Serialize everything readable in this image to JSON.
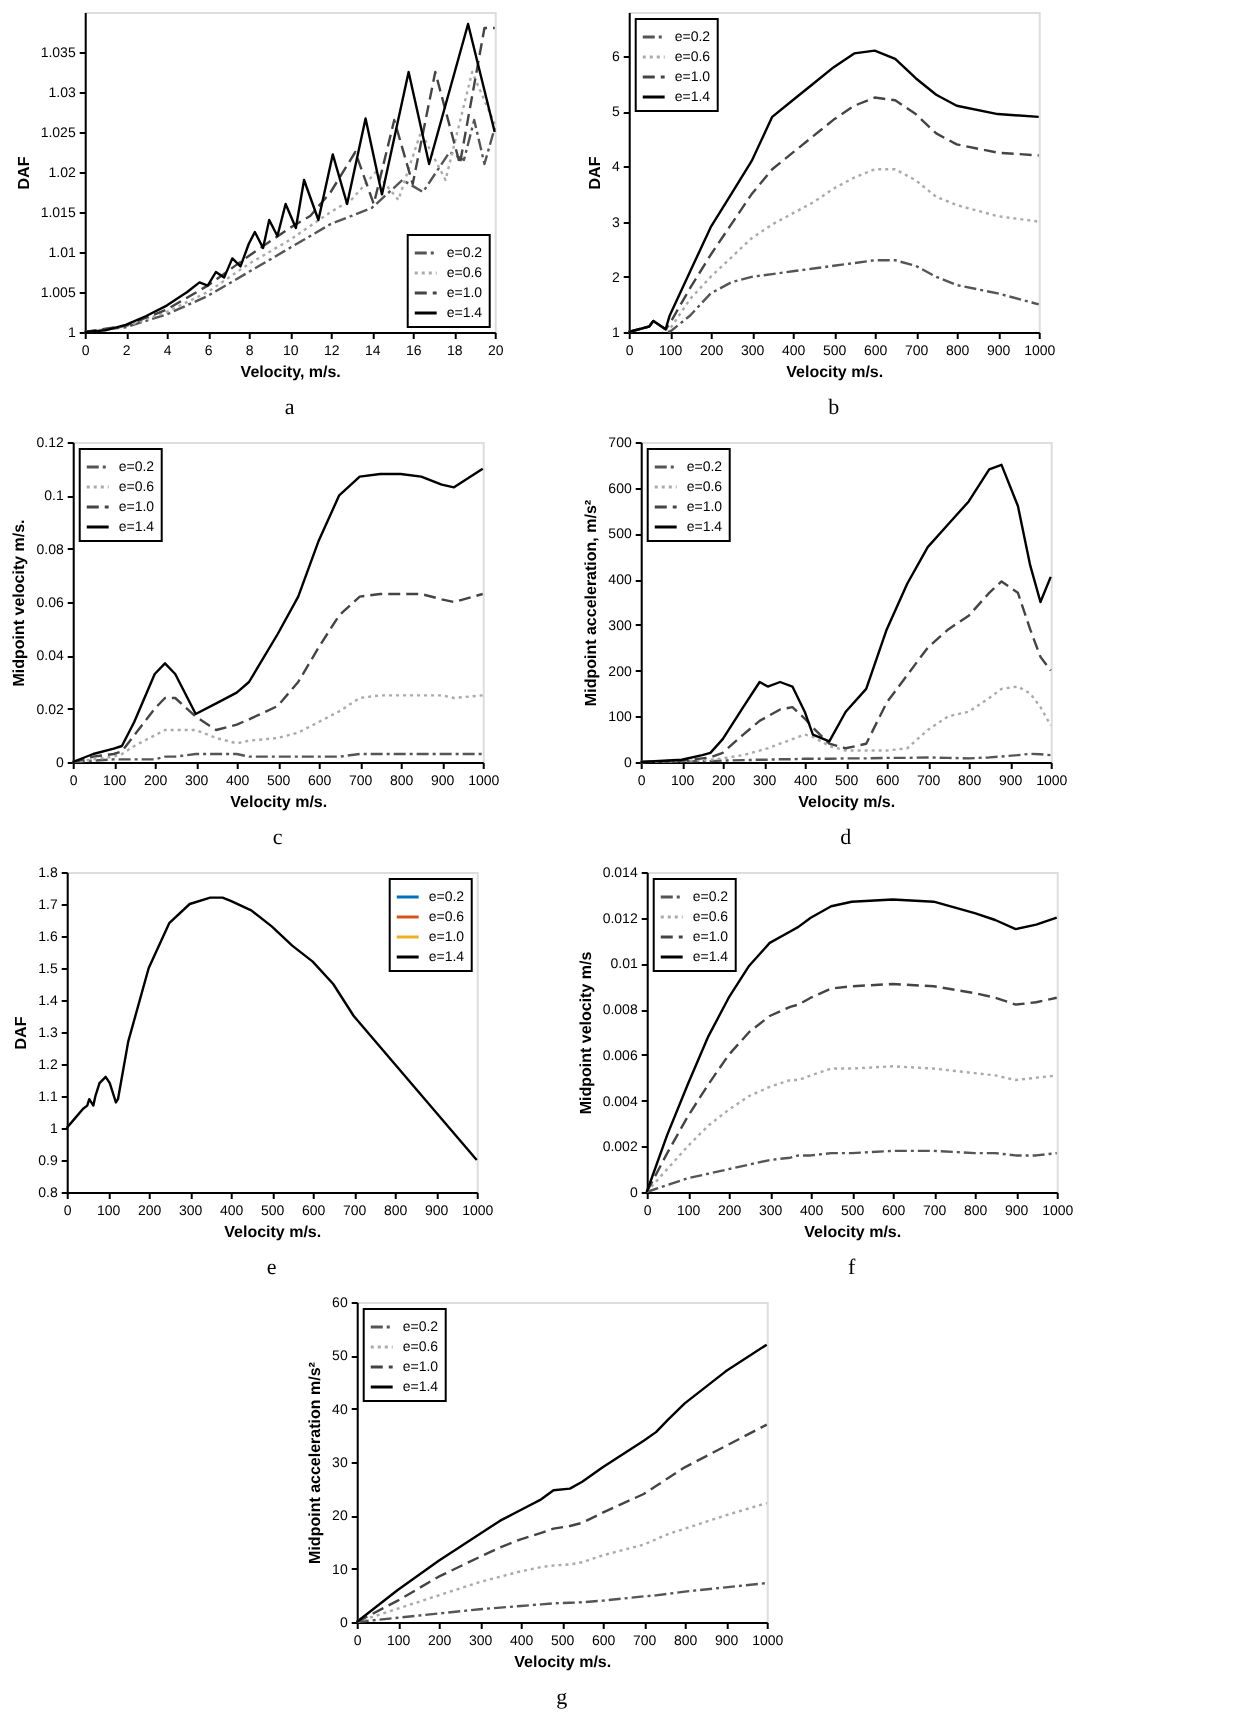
{
  "chart_data": [
    {
      "type": "line",
      "title": "a",
      "xlabel": "Velocity, m/s.",
      "ylabel": "DAF",
      "xlim": [
        0,
        20
      ],
      "xticks": [
        0,
        2,
        4,
        6,
        8,
        10,
        12,
        14,
        16,
        18,
        20
      ],
      "ylim": [
        1,
        1.04
      ],
      "yticks": [
        1,
        1.005,
        1.01,
        1.015,
        1.02,
        1.025,
        1.03,
        1.035
      ],
      "grid": false,
      "legend": "bottom right",
      "marker": "none",
      "series": [
        {
          "name": "e=0.2",
          "color": "#555555",
          "line_style": "dashdot",
          "x": [
            0,
            2,
            4,
            6,
            8,
            10,
            12,
            13,
            14,
            15.5,
            16.5,
            17.8,
            18.5,
            19,
            19.5,
            20
          ],
          "values": [
            1,
            1.0006,
            1.0022,
            1.0045,
            1.0075,
            1.0105,
            1.0135,
            1.0145,
            1.0155,
            1.019,
            1.0175,
            1.0225,
            1.0215,
            1.0265,
            1.021,
            1.0255
          ]
        },
        {
          "name": "e=0.6",
          "color": "#aaaaaa",
          "line_style": "dotted",
          "x": [
            0,
            2,
            4,
            6,
            8,
            10,
            12,
            13,
            14.2,
            15.3,
            16.4,
            17.6,
            18.9,
            20
          ],
          "values": [
            1,
            1.0007,
            1.0025,
            1.005,
            1.0085,
            1.0115,
            1.015,
            1.0165,
            1.02,
            1.0165,
            1.025,
            1.019,
            1.0325,
            1.026
          ]
        },
        {
          "name": "e=1.0",
          "color": "#444444",
          "line_style": "dashed",
          "x": [
            0,
            2,
            4,
            6,
            8,
            10,
            11,
            12,
            13.2,
            14.1,
            15.1,
            16,
            17.1,
            18.3,
            19.5,
            20
          ],
          "values": [
            1,
            1.0008,
            1.0028,
            1.0058,
            1.0095,
            1.013,
            1.0145,
            1.0175,
            1.0225,
            1.016,
            1.0265,
            1.0185,
            1.0325,
            1.021,
            1.038,
            1.038
          ]
        },
        {
          "name": "e=1.4",
          "color": "#000000",
          "line_style": "solid",
          "x": [
            0,
            1,
            2,
            3,
            4,
            5,
            5.6,
            6,
            6.4,
            6.8,
            7.2,
            7.6,
            8,
            8.3,
            8.7,
            9,
            9.4,
            9.8,
            10.3,
            10.7,
            11.4,
            12.1,
            12.8,
            13.7,
            14.5,
            15.8,
            16.8,
            18.7,
            20
          ],
          "values": [
            1,
            1.0002,
            1.0009,
            1.002,
            1.0033,
            1.005,
            1.0062,
            1.0058,
            1.0075,
            1.0068,
            1.0092,
            1.0082,
            1.011,
            1.0125,
            1.0105,
            1.014,
            1.012,
            1.016,
            1.013,
            1.019,
            1.014,
            1.0222,
            1.016,
            1.0267,
            1.0172,
            1.0325,
            1.021,
            1.0385,
            1.025
          ]
        }
      ]
    },
    {
      "type": "line",
      "title": "b",
      "xlabel": "Velocity m/s.",
      "ylabel": "DAF",
      "xlim": [
        0,
        1000
      ],
      "xticks": [
        0,
        100,
        200,
        300,
        400,
        500,
        600,
        700,
        800,
        900,
        1000
      ],
      "ylim": [
        1,
        6.8
      ],
      "yticks": [
        1,
        2,
        3,
        4,
        5,
        6
      ],
      "grid": false,
      "legend": "top left",
      "marker": "none",
      "x": [
        0,
        50,
        60,
        80,
        90,
        100,
        150,
        200,
        250,
        300,
        350,
        400,
        450,
        500,
        550,
        600,
        650,
        700,
        750,
        800,
        900,
        1000
      ],
      "series": [
        {
          "name": "e=0.2",
          "color": "#555555",
          "line_style": "dashdot",
          "values": [
            1,
            1.1,
            1.2,
            1.1,
            1.05,
            1.0,
            1.3,
            1.7,
            1.9,
            2.0,
            2.05,
            2.1,
            2.15,
            2.2,
            2.25,
            2.3,
            2.3,
            2.2,
            2.0,
            1.85,
            1.7,
            1.5
          ]
        },
        {
          "name": "e=0.6",
          "color": "#aaaaaa",
          "line_style": "dotted",
          "values": [
            1,
            1.1,
            1.2,
            1.1,
            1.05,
            1.05,
            1.6,
            2.0,
            2.35,
            2.7,
            2.95,
            3.15,
            3.35,
            3.6,
            3.8,
            3.95,
            3.95,
            3.75,
            3.45,
            3.3,
            3.1,
            3.0
          ]
        },
        {
          "name": "e=1.0",
          "color": "#444444",
          "line_style": "dashed",
          "values": [
            1,
            1.1,
            1.2,
            1.1,
            1.05,
            1.15,
            1.8,
            2.4,
            2.95,
            3.5,
            3.95,
            4.25,
            4.55,
            4.85,
            5.1,
            5.25,
            5.2,
            4.95,
            4.6,
            4.4,
            4.25,
            4.2
          ]
        },
        {
          "name": "e=1.4",
          "color": "#000000",
          "line_style": "solid",
          "values": [
            1,
            1.1,
            1.2,
            1.1,
            1.05,
            1.3,
            2.1,
            2.9,
            3.5,
            4.1,
            4.9,
            5.2,
            5.5,
            5.8,
            6.05,
            6.1,
            5.95,
            5.6,
            5.3,
            5.1,
            4.95,
            4.9
          ]
        }
      ]
    },
    {
      "type": "line",
      "title": "c",
      "xlabel": "Velocity m/s.",
      "ylabel": "Midpoint velocity m/s.",
      "xlim": [
        0,
        1000
      ],
      "xticks": [
        0,
        100,
        200,
        300,
        400,
        500,
        600,
        700,
        800,
        900,
        1000
      ],
      "ylim": [
        0,
        0.12
      ],
      "yticks": [
        0,
        0.02,
        0.04,
        0.06,
        0.08,
        0.1,
        0.12
      ],
      "grid": false,
      "legend": "top left",
      "marker": "none",
      "x": [
        0,
        50,
        100,
        120,
        150,
        200,
        225,
        250,
        300,
        350,
        400,
        430,
        500,
        550,
        600,
        650,
        700,
        750,
        800,
        850,
        900,
        930,
        1000
      ],
      "series": [
        {
          "name": "e=0.2",
          "color": "#555555",
          "line_style": "dashdot",
          "values": [
            0,
            0.0005,
            0.001,
            0.001,
            0.001,
            0.001,
            0.002,
            0.002,
            0.003,
            0.003,
            0.003,
            0.002,
            0.002,
            0.002,
            0.002,
            0.002,
            0.003,
            0.003,
            0.003,
            0.003,
            0.003,
            0.003,
            0.003
          ]
        },
        {
          "name": "e=0.6",
          "color": "#aaaaaa",
          "line_style": "dotted",
          "values": [
            0,
            0.001,
            0.002,
            0.003,
            0.006,
            0.01,
            0.012,
            0.012,
            0.012,
            0.009,
            0.007,
            0.008,
            0.009,
            0.011,
            0.015,
            0.019,
            0.024,
            0.025,
            0.025,
            0.025,
            0.025,
            0.024,
            0.025
          ]
        },
        {
          "name": "e=1.0",
          "color": "#444444",
          "line_style": "dashed",
          "values": [
            0,
            0.002,
            0.003,
            0.004,
            0.01,
            0.02,
            0.024,
            0.024,
            0.017,
            0.012,
            0.014,
            0.016,
            0.021,
            0.03,
            0.043,
            0.055,
            0.062,
            0.063,
            0.063,
            0.063,
            0.061,
            0.06,
            0.063
          ]
        },
        {
          "name": "e=1.4",
          "color": "#000000",
          "line_style": "solid",
          "values": [
            0,
            0.003,
            0.005,
            0.006,
            0.015,
            0.033,
            0.037,
            0.033,
            0.018,
            0.022,
            0.026,
            0.03,
            0.048,
            0.062,
            0.083,
            0.1,
            0.107,
            0.108,
            0.108,
            0.107,
            0.104,
            0.103,
            0.11
          ]
        }
      ]
    },
    {
      "type": "line",
      "title": "d",
      "xlabel": "Velocity m/s.",
      "ylabel": "Midpoint acceleration, m/s²",
      "xlim": [
        0,
        1000
      ],
      "xticks": [
        0,
        100,
        200,
        300,
        400,
        500,
        600,
        700,
        800,
        900,
        1000
      ],
      "ylim": [
        0,
        700
      ],
      "yticks": [
        0,
        100,
        200,
        300,
        400,
        500,
        600,
        700
      ],
      "grid": false,
      "legend": "top left",
      "marker": "none",
      "x": [
        0,
        100,
        150,
        170,
        200,
        250,
        290,
        310,
        340,
        370,
        400,
        420,
        460,
        500,
        550,
        600,
        650,
        700,
        750,
        800,
        850,
        880,
        920,
        950,
        975,
        1000
      ],
      "series": [
        {
          "name": "e=0.2",
          "color": "#555555",
          "line_style": "dashdot",
          "values": [
            0,
            1,
            2,
            2,
            3,
            4,
            5,
            5,
            6,
            6,
            7,
            7,
            7,
            8,
            8,
            9,
            9,
            10,
            9,
            8,
            10,
            12,
            15,
            18,
            17,
            15
          ]
        },
        {
          "name": "e=0.6",
          "color": "#aaaaaa",
          "line_style": "dotted",
          "values": [
            0,
            2,
            4,
            5,
            8,
            15,
            25,
            30,
            40,
            50,
            60,
            55,
            35,
            25,
            25,
            25,
            30,
            70,
            100,
            110,
            140,
            160,
            165,
            150,
            120,
            80
          ]
        },
        {
          "name": "e=1.0",
          "color": "#444444",
          "line_style": "dashed",
          "values": [
            0,
            3,
            8,
            10,
            20,
            60,
            90,
            100,
            115,
            120,
            95,
            75,
            40,
            30,
            40,
            130,
            190,
            250,
            290,
            320,
            370,
            395,
            370,
            290,
            230,
            200
          ]
        },
        {
          "name": "e=1.4",
          "color": "#000000",
          "line_style": "solid",
          "values": [
            0,
            5,
            15,
            20,
            50,
            120,
            175,
            165,
            175,
            165,
            110,
            60,
            45,
            110,
            160,
            290,
            390,
            470,
            520,
            570,
            640,
            650,
            560,
            430,
            350,
            405
          ]
        }
      ]
    },
    {
      "type": "line",
      "title": "e",
      "xlabel": "Velocity m/s.",
      "ylabel": "DAF",
      "xlim": [
        0,
        1000
      ],
      "xticks": [
        0,
        100,
        200,
        300,
        400,
        500,
        600,
        700,
        800,
        900,
        1000
      ],
      "ylim": [
        0.8,
        1.8
      ],
      "yticks": [
        0.8,
        0.9,
        1,
        1.1,
        1.2,
        1.3,
        1.4,
        1.5,
        1.6,
        1.7,
        1.8
      ],
      "grid": false,
      "legend": "top right",
      "marker": "none",
      "x": [
        0,
        20,
        40,
        50,
        55,
        60,
        65,
        70,
        80,
        95,
        105,
        115,
        120,
        125,
        150,
        200,
        250,
        300,
        350,
        380,
        400,
        450,
        500,
        550,
        600,
        650,
        700,
        800,
        900,
        1000
      ],
      "series": [
        {
          "name": "e=0.2",
          "color": "#0072bd",
          "line_style": "solid",
          "values": [
            null,
            null,
            null,
            null,
            null,
            null,
            null,
            null,
            null,
            null,
            null,
            null,
            null,
            null,
            null,
            null,
            null,
            null,
            null,
            null,
            null,
            null,
            null,
            null,
            null,
            null,
            null,
            null,
            null,
            null
          ]
        },
        {
          "name": "e=0.6",
          "color": "#d95319",
          "line_style": "solid",
          "values": [
            null,
            null,
            null,
            null,
            null,
            null,
            null,
            null,
            null,
            null,
            null,
            null,
            null,
            null,
            null,
            null,
            null,
            null,
            null,
            null,
            null,
            null,
            null,
            null,
            null,
            null,
            null,
            null,
            null,
            null
          ]
        },
        {
          "name": "e=1.0",
          "color": "#edb120",
          "line_style": "solid",
          "values": [
            null,
            null,
            null,
            null,
            null,
            null,
            null,
            null,
            null,
            null,
            null,
            null,
            null,
            null,
            null,
            null,
            null,
            null,
            null,
            null,
            null,
            null,
            null,
            null,
            null,
            null,
            null,
            null,
            null,
            null
          ]
        },
        {
          "name": "e=1.4",
          "color": "#000000",
          "line_style": "solid",
          "values": [
            1,
            1.03,
            1.06,
            1.07,
            1.09,
            1.08,
            1.07,
            1.1,
            1.14,
            1.16,
            1.14,
            1.1,
            1.08,
            1.09,
            1.27,
            1.5,
            1.64,
            1.7,
            1.72,
            1.72,
            1.71,
            1.68,
            1.63,
            1.57,
            1.52,
            1.45,
            1.35,
            1.2,
            1.05,
            0.9
          ]
        }
      ]
    },
    {
      "type": "line",
      "title": "f",
      "xlabel": "Velocity m/s.",
      "ylabel": "Midpoint velocity m/s",
      "xlim": [
        0,
        1000
      ],
      "xticks": [
        0,
        100,
        200,
        300,
        400,
        500,
        600,
        700,
        800,
        900,
        1000
      ],
      "ylim": [
        0,
        0.014
      ],
      "yticks": [
        0,
        0.002,
        0.004,
        0.006,
        0.008,
        0.01,
        0.012,
        0.014
      ],
      "grid": false,
      "legend": "top left",
      "marker": "none",
      "x": [
        0,
        50,
        100,
        150,
        200,
        250,
        300,
        350,
        370,
        400,
        450,
        500,
        600,
        700,
        800,
        850,
        900,
        950,
        1000
      ],
      "series": [
        {
          "name": "e=0.2",
          "color": "#555555",
          "line_style": "dashdot",
          "values": [
            0,
            0.0003,
            0.0006,
            0.0008,
            0.001,
            0.0012,
            0.0014,
            0.0015,
            0.0016,
            0.0016,
            0.0017,
            0.0017,
            0.0018,
            0.0018,
            0.0017,
            0.0017,
            0.0016,
            0.0016,
            0.0017
          ]
        },
        {
          "name": "e=0.6",
          "color": "#aaaaaa",
          "line_style": "dotted",
          "values": [
            0,
            0.001,
            0.002,
            0.0029,
            0.0036,
            0.0042,
            0.0046,
            0.0049,
            0.0049,
            0.0051,
            0.0054,
            0.0054,
            0.0055,
            0.0054,
            0.0052,
            0.0051,
            0.0049,
            0.005,
            0.0051
          ]
        },
        {
          "name": "e=1.0",
          "color": "#444444",
          "line_style": "dashed",
          "values": [
            0,
            0.0017,
            0.0033,
            0.0047,
            0.006,
            0.007,
            0.0077,
            0.0081,
            0.0082,
            0.0085,
            0.0089,
            0.009,
            0.0091,
            0.009,
            0.0087,
            0.0085,
            0.0082,
            0.0083,
            0.0085
          ]
        },
        {
          "name": "e=1.4",
          "color": "#000000",
          "line_style": "solid",
          "values": [
            0,
            0.0025,
            0.0047,
            0.0068,
            0.0085,
            0.0099,
            0.0109,
            0.0114,
            0.0116,
            0.012,
            0.0125,
            0.0127,
            0.0128,
            0.0127,
            0.0122,
            0.0119,
            0.0115,
            0.0117,
            0.012
          ]
        }
      ]
    },
    {
      "type": "line",
      "title": "g",
      "xlabel": "Velocity m/s.",
      "ylabel": "Midpoint acceleration m/s²",
      "xlim": [
        0,
        1000
      ],
      "xticks": [
        0,
        100,
        200,
        300,
        400,
        500,
        600,
        700,
        800,
        900,
        1000
      ],
      "ylim": [
        0,
        60
      ],
      "yticks": [
        0,
        10,
        20,
        30,
        40,
        50,
        60
      ],
      "grid": false,
      "legend": "top left",
      "marker": "none",
      "x": [
        0,
        100,
        200,
        300,
        350,
        400,
        450,
        480,
        520,
        550,
        600,
        700,
        730,
        760,
        800,
        900,
        1000
      ],
      "series": [
        {
          "name": "e=0.2",
          "color": "#555555",
          "line_style": "dashdot",
          "values": [
            0,
            0.8,
            1.6,
            2.4,
            2.7,
            3,
            3.3,
            3.5,
            3.6,
            3.7,
            4,
            4.8,
            5,
            5.3,
            5.7,
            6.5,
            7.3
          ]
        },
        {
          "name": "e=0.6",
          "color": "#aaaaaa",
          "line_style": "dotted",
          "values": [
            0,
            2.5,
            5,
            7.5,
            8.5,
            9.5,
            10.3,
            10.6,
            10.8,
            11.2,
            12.5,
            14.5,
            15.5,
            16.5,
            17.5,
            20,
            22.3
          ]
        },
        {
          "name": "e=1.0",
          "color": "#444444",
          "line_style": "dashed",
          "values": [
            0,
            4,
            8.5,
            12.2,
            14,
            15.5,
            16.7,
            17.5,
            18,
            18.6,
            20.5,
            24,
            25.5,
            27,
            29,
            33,
            37
          ]
        },
        {
          "name": "e=1.4",
          "color": "#000000",
          "line_style": "solid",
          "values": [
            0,
            6,
            11.5,
            16.5,
            19,
            21,
            23,
            24.7,
            25,
            26.3,
            29,
            34,
            35.6,
            38,
            41,
            47,
            52
          ]
        }
      ]
    }
  ]
}
